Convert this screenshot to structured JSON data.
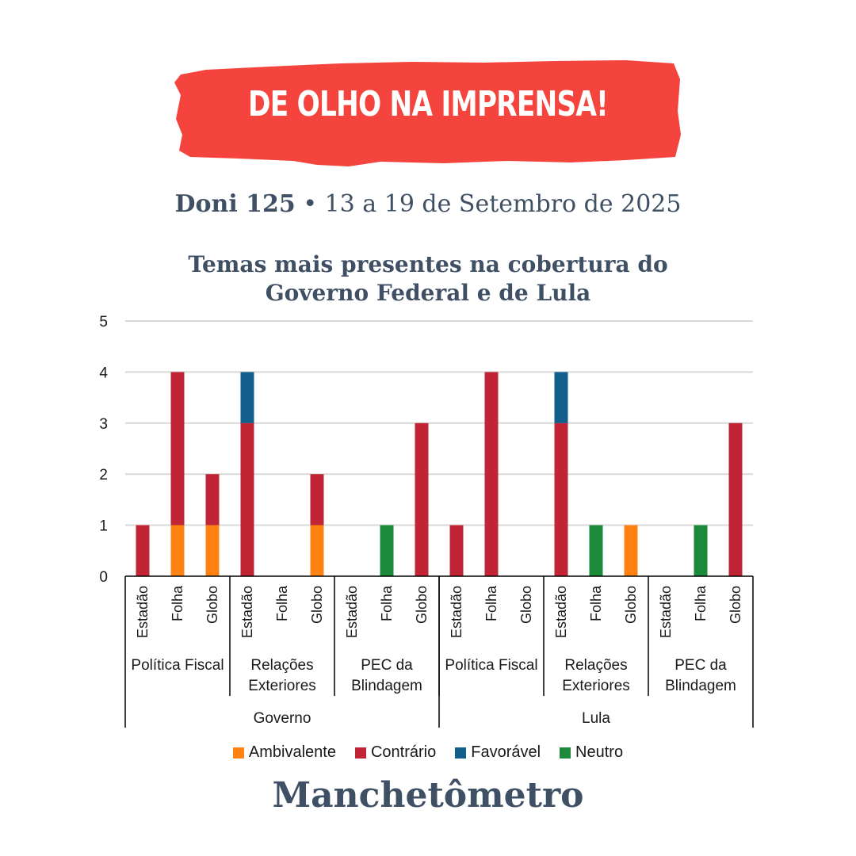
{
  "banner": {
    "text": "DE OLHO NA IMPRENSA!",
    "color": "#f4443d"
  },
  "subtitle": {
    "edition": "Doni 125",
    "separator": " • ",
    "date": "13 a 19 de Setembro de 2025"
  },
  "chart_title": {
    "line1": "Temas mais presentes na cobertura do",
    "line2": "Governo Federal e de Lula"
  },
  "brand": "Manchetômetro",
  "colors": {
    "text": "#3f4f64",
    "grid": "#d9d9d9",
    "axis": "#000000"
  },
  "chart_data": {
    "type": "bar",
    "stacked": true,
    "title": "Temas mais presentes na cobertura do Governo Federal e de Lula",
    "ylim": [
      0,
      5
    ],
    "yticks": [
      0,
      1,
      2,
      3,
      4,
      5
    ],
    "grid": true,
    "legend_position": "bottom",
    "categories": [
      "Estadão",
      "Folha",
      "Globo",
      "Estadão",
      "Folha",
      "Globo",
      "Estadão",
      "Folha",
      "Globo",
      "Estadão",
      "Folha",
      "Globo",
      "Estadão",
      "Folha",
      "Globo",
      "Estadão",
      "Folha",
      "Globo"
    ],
    "topic_groups": [
      {
        "label": [
          "Política Fiscal"
        ],
        "size": 3
      },
      {
        "label": [
          "Relações",
          "Exteriores"
        ],
        "size": 3
      },
      {
        "label": [
          "PEC da",
          "Blindagem"
        ],
        "size": 3
      },
      {
        "label": [
          "Política Fiscal"
        ],
        "size": 3
      },
      {
        "label": [
          "Relações",
          "Exteriores"
        ],
        "size": 3
      },
      {
        "label": [
          "PEC da",
          "Blindagem"
        ],
        "size": 3
      }
    ],
    "entity_groups": [
      {
        "label": "Governo",
        "size": 9
      },
      {
        "label": "Lula",
        "size": 9
      }
    ],
    "series": [
      {
        "name": "Ambivalente",
        "color": "#ff8212",
        "values": [
          0,
          1,
          1,
          0,
          0,
          1,
          0,
          0,
          0,
          0,
          0,
          0,
          0,
          0,
          1,
          0,
          0,
          0
        ]
      },
      {
        "name": "Contrário",
        "color": "#c12434",
        "values": [
          1,
          3,
          1,
          3,
          0,
          1,
          0,
          0,
          3,
          1,
          4,
          0,
          3,
          0,
          0,
          0,
          0,
          3
        ]
      },
      {
        "name": "Favorável",
        "color": "#115f8a",
        "values": [
          0,
          0,
          0,
          1,
          0,
          0,
          0,
          0,
          0,
          0,
          0,
          0,
          1,
          0,
          0,
          0,
          0,
          0
        ]
      },
      {
        "name": "Neutro",
        "color": "#1c8a3a",
        "values": [
          0,
          0,
          0,
          0,
          0,
          0,
          0,
          1,
          0,
          0,
          0,
          0,
          0,
          1,
          0,
          0,
          1,
          0
        ]
      }
    ]
  }
}
